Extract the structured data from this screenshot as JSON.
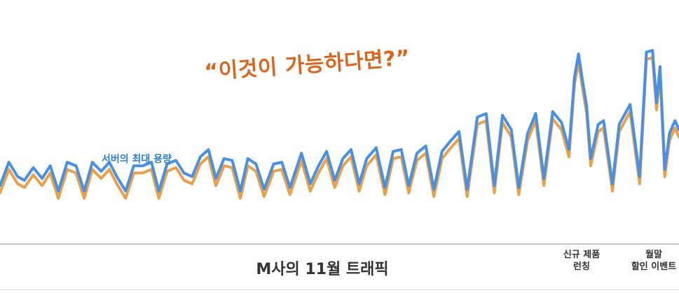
{
  "colors": {
    "server_line": "#4a90e2",
    "traffic_line": "#e8a04a",
    "headline": "#d9661f",
    "capacity_label": "#2d7fd0"
  },
  "headline": "“이것이 가능하다면?”",
  "capacity_label": "서버의 최대 용량",
  "chart_data": {
    "type": "line",
    "title": "M사의 11월 트래픽",
    "xlabel": "",
    "ylabel": "",
    "x_range": [
      0,
      100
    ],
    "y_range": [
      0,
      100
    ],
    "grid": false,
    "legend": "none",
    "annotations": [
      {
        "text": [
          "신규 제품",
          "런칭"
        ],
        "x": 85
      },
      {
        "text": [
          "월말",
          "할인 이벤트"
        ],
        "x": 95
      }
    ],
    "series": [
      {
        "key": "capacity",
        "color": "#4a90e2",
        "points": [
          [
            0,
            25
          ],
          [
            1.3,
            38
          ],
          [
            2.6,
            30
          ],
          [
            3.6,
            28
          ],
          [
            4.9,
            35
          ],
          [
            6.2,
            29
          ],
          [
            7.4,
            36
          ],
          [
            8.6,
            22
          ],
          [
            9.9,
            38
          ],
          [
            11.2,
            36
          ],
          [
            12.4,
            22
          ],
          [
            13.6,
            38
          ],
          [
            14.9,
            33
          ],
          [
            16.1,
            38
          ],
          [
            17.2,
            30
          ],
          [
            18.5,
            22
          ],
          [
            19.7,
            36
          ],
          [
            21,
            36
          ],
          [
            22.3,
            38
          ],
          [
            23.4,
            22
          ],
          [
            24.6,
            37
          ],
          [
            25.9,
            39
          ],
          [
            27.1,
            32
          ],
          [
            28.3,
            30
          ],
          [
            29.5,
            41
          ],
          [
            30.7,
            45
          ],
          [
            31.8,
            29
          ],
          [
            33,
            40
          ],
          [
            34.2,
            39
          ],
          [
            35.4,
            22
          ],
          [
            36.5,
            40
          ],
          [
            37.7,
            37
          ],
          [
            38.9,
            23
          ],
          [
            40.3,
            37
          ],
          [
            41.5,
            38
          ],
          [
            42.7,
            24
          ],
          [
            44.4,
            43
          ],
          [
            45.7,
            26
          ],
          [
            46.9,
            36
          ],
          [
            48.1,
            44
          ],
          [
            49.3,
            28
          ],
          [
            50.5,
            40
          ],
          [
            51.7,
            45
          ],
          [
            52.9,
            26
          ],
          [
            54,
            40
          ],
          [
            55.4,
            46
          ],
          [
            56.7,
            24
          ],
          [
            57.9,
            44
          ],
          [
            59.1,
            45
          ],
          [
            60.2,
            25
          ],
          [
            61.4,
            43
          ],
          [
            62.7,
            47
          ],
          [
            63.9,
            23
          ],
          [
            65.1,
            44
          ],
          [
            66.4,
            50
          ],
          [
            67.6,
            55
          ],
          [
            68.8,
            23
          ],
          [
            70.3,
            63
          ],
          [
            71.6,
            65
          ],
          [
            72.8,
            25
          ],
          [
            74,
            64
          ],
          [
            75.3,
            56
          ],
          [
            76.4,
            24
          ],
          [
            77.7,
            54
          ],
          [
            78.9,
            65
          ],
          [
            80.1,
            29
          ],
          [
            81.4,
            66
          ],
          [
            82.7,
            60
          ],
          [
            83.8,
            45
          ],
          [
            84.6,
            85
          ],
          [
            85.2,
            98
          ],
          [
            85.8,
            83
          ],
          [
            86.4,
            69
          ],
          [
            87,
            40
          ],
          [
            88.1,
            59
          ],
          [
            88.9,
            61
          ],
          [
            90.2,
            26
          ],
          [
            91.2,
            59
          ],
          [
            92.8,
            70
          ],
          [
            94.2,
            30
          ],
          [
            95.2,
            99
          ],
          [
            96.1,
            100
          ],
          [
            96.7,
            71
          ],
          [
            97.2,
            91
          ],
          [
            97.9,
            34
          ],
          [
            98.6,
            54
          ],
          [
            99.4,
            61
          ],
          [
            100,
            56
          ]
        ]
      },
      {
        "key": "traffic",
        "color": "#e8a04a",
        "points": [
          [
            0,
            21
          ],
          [
            1.3,
            34
          ],
          [
            2.6,
            26
          ],
          [
            3.6,
            24
          ],
          [
            4.9,
            31
          ],
          [
            6.2,
            25
          ],
          [
            7.4,
            32
          ],
          [
            8.6,
            18
          ],
          [
            9.9,
            34
          ],
          [
            11.2,
            32
          ],
          [
            12.4,
            18
          ],
          [
            13.6,
            34
          ],
          [
            14.9,
            29
          ],
          [
            16.1,
            34
          ],
          [
            17.2,
            26
          ],
          [
            18.5,
            18
          ],
          [
            19.7,
            32
          ],
          [
            21,
            32
          ],
          [
            22.3,
            34
          ],
          [
            23.4,
            18
          ],
          [
            24.6,
            33
          ],
          [
            25.9,
            35
          ],
          [
            27.1,
            28
          ],
          [
            28.3,
            26
          ],
          [
            29.5,
            37
          ],
          [
            30.7,
            41
          ],
          [
            31.8,
            25
          ],
          [
            33,
            36
          ],
          [
            34.2,
            35
          ],
          [
            35.4,
            18
          ],
          [
            36.5,
            36
          ],
          [
            37.7,
            33
          ],
          [
            38.9,
            19
          ],
          [
            40.3,
            33
          ],
          [
            41.5,
            34
          ],
          [
            42.7,
            20
          ],
          [
            44.4,
            39
          ],
          [
            45.7,
            22
          ],
          [
            46.9,
            32
          ],
          [
            48.1,
            40
          ],
          [
            49.3,
            24
          ],
          [
            50.5,
            36
          ],
          [
            51.7,
            41
          ],
          [
            52.9,
            22
          ],
          [
            54,
            36
          ],
          [
            55.4,
            42
          ],
          [
            56.7,
            20
          ],
          [
            57.9,
            40
          ],
          [
            59.1,
            41
          ],
          [
            60.2,
            21
          ],
          [
            61.4,
            39
          ],
          [
            62.7,
            43
          ],
          [
            63.9,
            19
          ],
          [
            65.1,
            40
          ],
          [
            66.4,
            46
          ],
          [
            67.6,
            51
          ],
          [
            68.8,
            19
          ],
          [
            70.3,
            59
          ],
          [
            71.6,
            61
          ],
          [
            72.8,
            21
          ],
          [
            74,
            60
          ],
          [
            75.3,
            52
          ],
          [
            76.4,
            20
          ],
          [
            77.7,
            50
          ],
          [
            78.9,
            61
          ],
          [
            80.1,
            25
          ],
          [
            81.4,
            62
          ],
          [
            82.7,
            56
          ],
          [
            83.8,
            41
          ],
          [
            84.6,
            81
          ],
          [
            85.2,
            94
          ],
          [
            85.8,
            79
          ],
          [
            86.4,
            65
          ],
          [
            87,
            36
          ],
          [
            88.1,
            55
          ],
          [
            88.9,
            57
          ],
          [
            90.2,
            22
          ],
          [
            91.2,
            55
          ],
          [
            92.8,
            66
          ],
          [
            94.2,
            26
          ],
          [
            95.2,
            95
          ],
          [
            96.1,
            96
          ],
          [
            96.7,
            67
          ],
          [
            97.2,
            87
          ],
          [
            97.9,
            30
          ],
          [
            98.6,
            50
          ],
          [
            99.4,
            57
          ],
          [
            100,
            52
          ]
        ]
      }
    ]
  }
}
